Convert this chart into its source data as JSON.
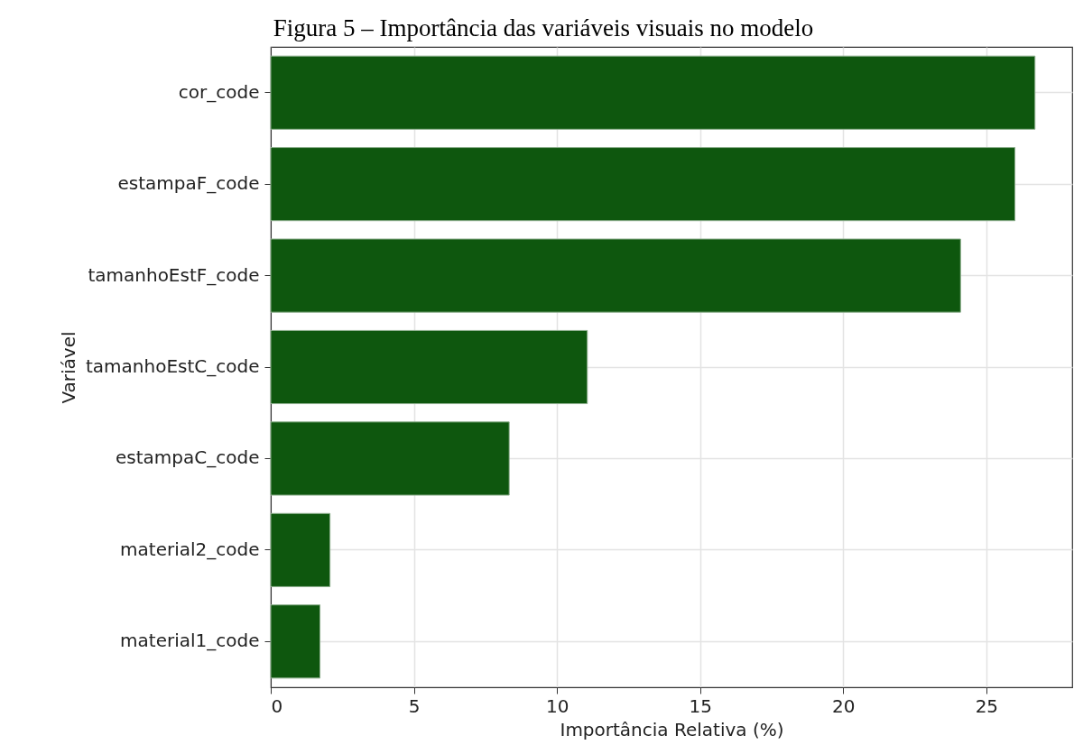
{
  "chart_data": {
    "type": "bar",
    "orientation": "horizontal",
    "title": "Figura 5 – Importância das variáveis visuais no modelo",
    "xlabel": "Importância Relativa (%)",
    "ylabel": "Variável",
    "categories": [
      "cor_code",
      "estampaF_code",
      "tamanhoEstF_code",
      "tamanhoEstC_code",
      "estampaC_code",
      "material2_code",
      "material1_code"
    ],
    "values": [
      26.7,
      26.0,
      24.1,
      11.06,
      8.33,
      2.07,
      1.72
    ],
    "color": "#0e570e",
    "xlim": [
      0,
      28
    ],
    "xticks": [
      0,
      5,
      10,
      15,
      20,
      25
    ],
    "grid": true
  }
}
